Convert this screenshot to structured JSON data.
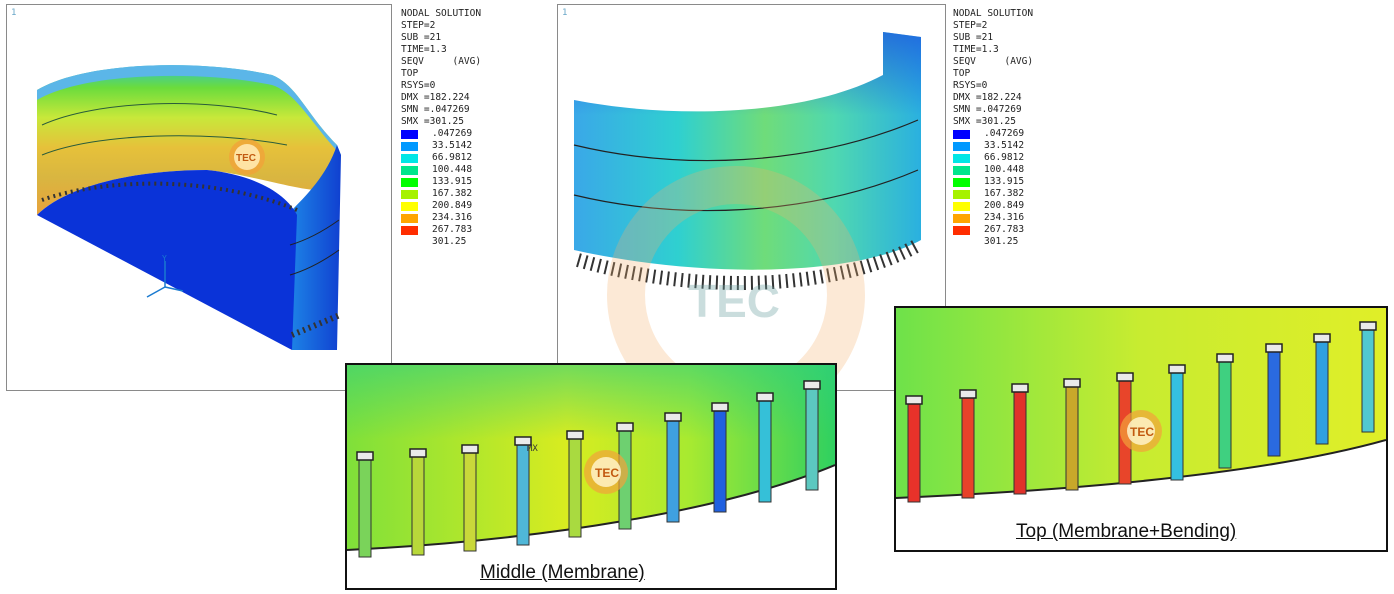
{
  "viewport_number": "1",
  "legend_header": [
    "NODAL SOLUTION",
    "STEP=2",
    "SUB =21",
    "TIME=1.3",
    "SEQV     (AVG)",
    "TOP",
    "RSYS=0",
    "DMX =182.224",
    "SMN =.047269",
    "SMX =301.25"
  ],
  "legend_levels": [
    ".047269",
    "33.5142",
    "66.9812",
    "100.448",
    "133.915",
    "167.382",
    "200.849",
    "234.316",
    "267.783",
    "301.25"
  ],
  "legend_colors": [
    "#0000ff",
    "#0099ff",
    "#00e6e6",
    "#00e68c",
    "#00ff00",
    "#a6f200",
    "#ffff00",
    "#ffa500",
    "#ff2d00"
  ],
  "watermark_text": "TEC",
  "axis_label_y": "Y",
  "max_marker": "MX",
  "captions": {
    "middle": "Middle (Membrane)",
    "top": "Top (Membrane+Bending)"
  }
}
